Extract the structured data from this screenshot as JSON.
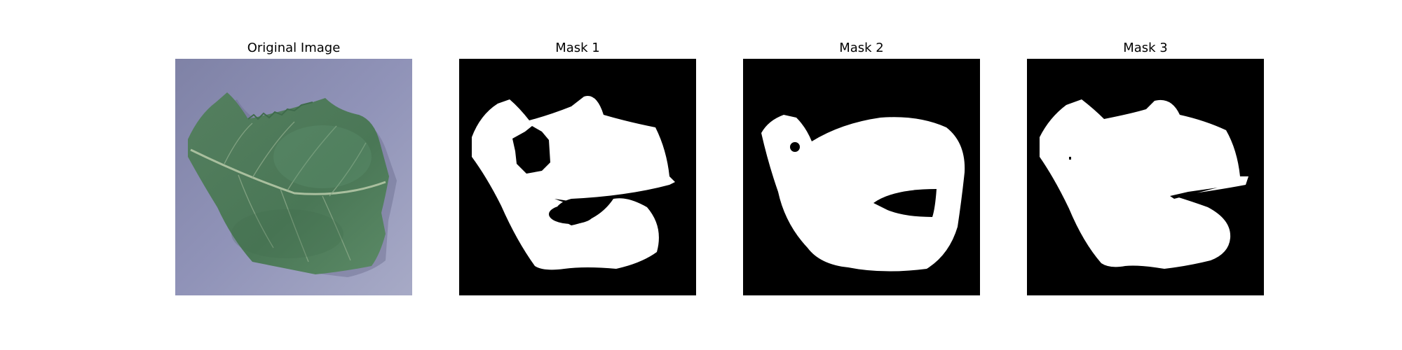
{
  "figure": {
    "panels": [
      {
        "title": "Original Image",
        "content": "leaf-photo"
      },
      {
        "title": "Mask 1",
        "content": "binary-mask"
      },
      {
        "title": "Mask 2",
        "content": "binary-mask"
      },
      {
        "title": "Mask 3",
        "content": "binary-mask"
      }
    ]
  },
  "colors": {
    "photo_background": "#8c8fb4",
    "leaf_green": "#4f7f5d",
    "leaf_dark": "#3f6b4c",
    "leaf_vein": "#9fb79a",
    "mask_background": "#000000",
    "mask_foreground": "#ffffff",
    "figure_background": "#ffffff"
  }
}
